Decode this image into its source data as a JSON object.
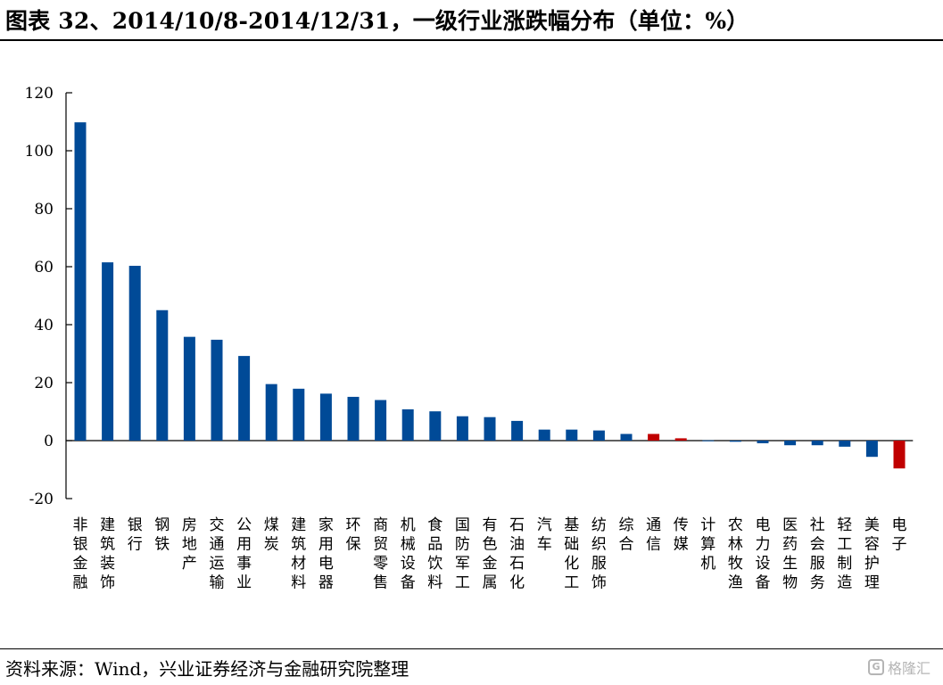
{
  "header": {
    "title": "图表 32、2014/10/8-2014/12/31，一级行业涨跌幅分布（单位：%）"
  },
  "footer": {
    "source": "资料来源：Wind，兴业证券经济与金融研究院整理",
    "watermark": "格隆汇",
    "watermark_logo": "G"
  },
  "colors": {
    "positive_bar": "#004a97",
    "highlight_bar": "#c00000",
    "axis": "#000000"
  },
  "chart_data": {
    "type": "bar",
    "title": "",
    "xlabel": "",
    "ylabel": "",
    "ylim": [
      -20,
      120
    ],
    "yticks": [
      -20,
      0,
      20,
      40,
      60,
      80,
      100,
      120
    ],
    "ytick_labels": [
      "-20",
      "0",
      "20",
      "40",
      "60",
      "80",
      "100",
      "120"
    ],
    "grid": false,
    "legend": "none",
    "categories": [
      "非银金融",
      "建筑装饰",
      "银行",
      "钢铁",
      "房地产",
      "交通运输",
      "公用事业",
      "煤炭",
      "建筑材料",
      "家用电器",
      "环保",
      "商贸零售",
      "机械设备",
      "食品饮料",
      "国防军工",
      "有色金属",
      "石油石化",
      "汽车",
      "基础化工",
      "纺织服饰",
      "综合",
      "通信",
      "传媒",
      "计算机",
      "农林牧渔",
      "电力设备",
      "医药生物",
      "社会服务",
      "轻工制造",
      "美容护理",
      "电子"
    ],
    "values": [
      109.8,
      61.5,
      60.3,
      45,
      35.8,
      34.8,
      29.2,
      19.5,
      17.9,
      16.2,
      15.1,
      14,
      10.8,
      10.1,
      8.4,
      8.1,
      6.8,
      3.8,
      3.8,
      3.5,
      2.3,
      2.3,
      0.8,
      0.1,
      -0.4,
      -0.9,
      -1.6,
      -1.6,
      -2.1,
      -5.6,
      -9.6
    ],
    "highlighted": [
      "通信",
      "传媒",
      "电子"
    ]
  }
}
